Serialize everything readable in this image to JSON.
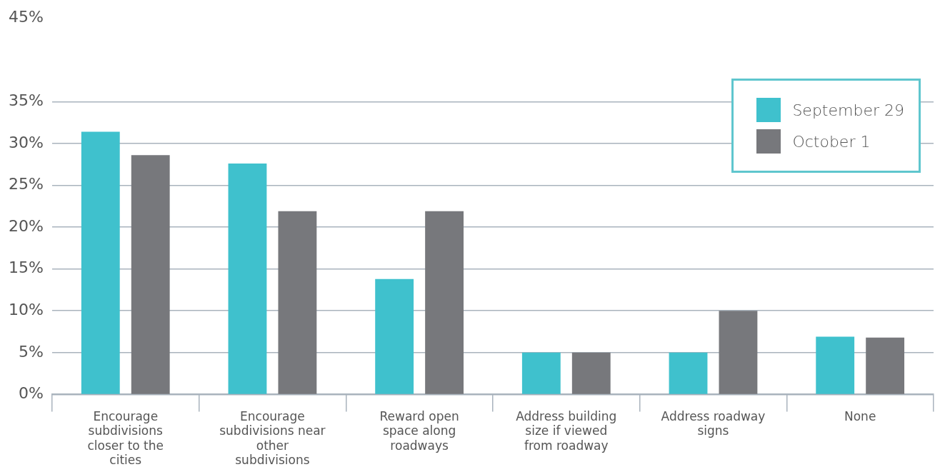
{
  "chart_data": {
    "type": "bar",
    "categories": [
      "Encourage subdivisions closer to the cities",
      "Encourage subdivisions near other subdivisions",
      "Reward open space along roadways",
      "Address building size if viewed from roadway",
      "Address roadway signs",
      "None"
    ],
    "series": [
      {
        "name": "September 29",
        "color": "#3fc1cd",
        "values": [
          31.4,
          27.6,
          13.8,
          5,
          5,
          6.9
        ]
      },
      {
        "name": "October 1",
        "color": "#77787c",
        "values": [
          28.6,
          21.9,
          21.9,
          5,
          10,
          6.8
        ]
      }
    ],
    "ylim": [
      0,
      45
    ],
    "yticks": [
      {
        "value": 0,
        "label": "0%"
      },
      {
        "value": 5,
        "label": "5%"
      },
      {
        "value": 10,
        "label": "10%"
      },
      {
        "value": 15,
        "label": "15%"
      },
      {
        "value": 20,
        "label": "20%"
      },
      {
        "value": 25,
        "label": "25%"
      },
      {
        "value": 30,
        "label": "30%"
      },
      {
        "value": 35,
        "label": "35%"
      },
      {
        "value": 45,
        "label": "45%"
      }
    ],
    "grid": "y",
    "legend": "top right"
  }
}
